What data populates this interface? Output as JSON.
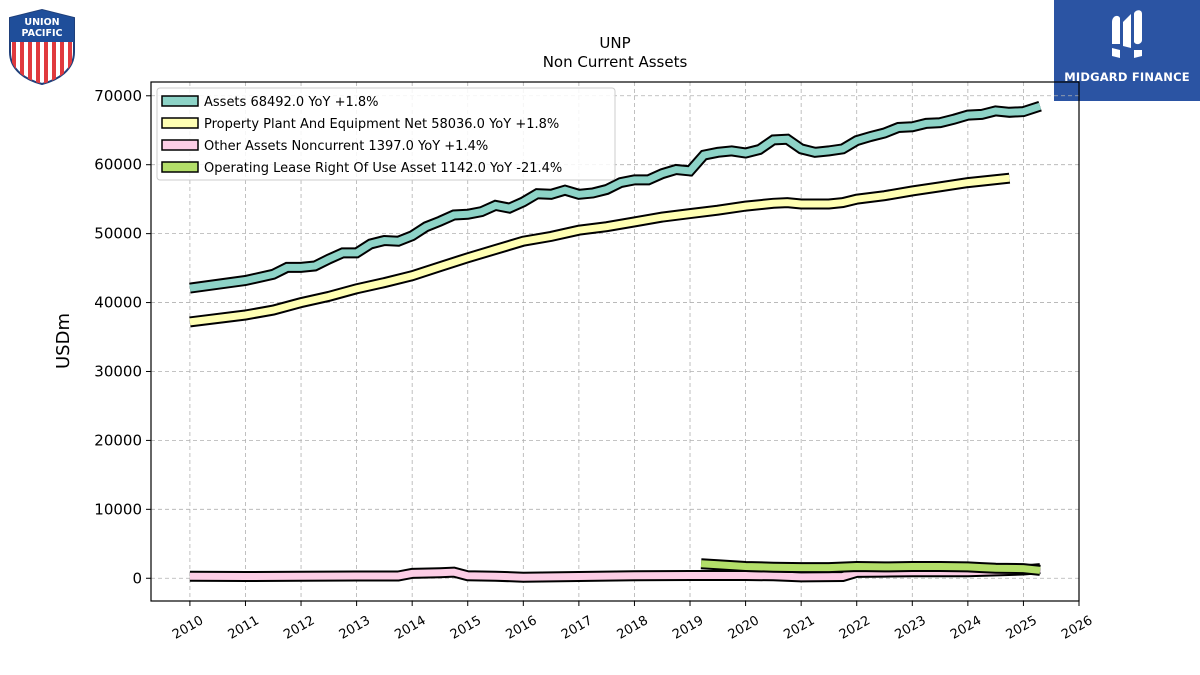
{
  "logos": {
    "left_text_line1": "UNION",
    "left_text_line2": "PACIFIC",
    "right_text": "MIDGARD FINANCE"
  },
  "colors": {
    "assets": "#8dd3c7",
    "ppe": "#ffffb3",
    "other": "#fccde5",
    "lease": "#b3de69",
    "grid": "#b0b0b0",
    "brand_blue": "#2b54a3"
  },
  "chart_data": {
    "type": "line",
    "title": "UNP",
    "subtitle": "Non Current  Assets",
    "xlabel": "",
    "ylabel": "USDm",
    "xlim": [
      2009.3,
      2026
    ],
    "ylim": [
      -3300,
      72000
    ],
    "x_ticks": [
      "2010",
      "2011",
      "2012",
      "2013",
      "2014",
      "2015",
      "2016",
      "2017",
      "2018",
      "2019",
      "2020",
      "2021",
      "2022",
      "2023",
      "2024",
      "2025",
      "2026"
    ],
    "y_ticks": [
      "0",
      "10000",
      "20000",
      "30000",
      "40000",
      "50000",
      "60000",
      "70000"
    ],
    "grid": true,
    "legend_position": "top-left",
    "series": [
      {
        "name": "Assets  68492.0 YoY +1.8%",
        "key": "assets",
        "points": [
          [
            2010.0,
            42100
          ],
          [
            2011.0,
            43200
          ],
          [
            2011.5,
            44100
          ],
          [
            2011.75,
            45100
          ],
          [
            2012.0,
            45100
          ],
          [
            2012.25,
            45300
          ],
          [
            2012.5,
            46300
          ],
          [
            2012.75,
            47200
          ],
          [
            2013.0,
            47200
          ],
          [
            2013.25,
            48500
          ],
          [
            2013.5,
            49000
          ],
          [
            2013.75,
            48900
          ],
          [
            2014.0,
            49700
          ],
          [
            2014.25,
            51000
          ],
          [
            2014.5,
            51800
          ],
          [
            2014.75,
            52700
          ],
          [
            2015.0,
            52800
          ],
          [
            2015.25,
            53200
          ],
          [
            2015.5,
            54100
          ],
          [
            2015.75,
            53700
          ],
          [
            2016.0,
            54600
          ],
          [
            2016.25,
            55800
          ],
          [
            2016.5,
            55700
          ],
          [
            2016.75,
            56300
          ],
          [
            2017.0,
            55700
          ],
          [
            2017.25,
            55900
          ],
          [
            2017.5,
            56400
          ],
          [
            2017.75,
            57400
          ],
          [
            2018.0,
            57800
          ],
          [
            2018.25,
            57800
          ],
          [
            2018.5,
            58700
          ],
          [
            2018.75,
            59300
          ],
          [
            2019.0,
            59100
          ],
          [
            2019.25,
            61400
          ],
          [
            2019.5,
            61800
          ],
          [
            2019.75,
            62000
          ],
          [
            2020.0,
            61700
          ],
          [
            2020.25,
            62200
          ],
          [
            2020.5,
            63600
          ],
          [
            2020.75,
            63700
          ],
          [
            2021.0,
            62300
          ],
          [
            2021.25,
            61800
          ],
          [
            2021.5,
            62000
          ],
          [
            2021.75,
            62300
          ],
          [
            2022.0,
            63500
          ],
          [
            2022.25,
            64100
          ],
          [
            2022.5,
            64600
          ],
          [
            2022.75,
            65400
          ],
          [
            2023.0,
            65500
          ],
          [
            2023.25,
            66000
          ],
          [
            2023.5,
            66100
          ],
          [
            2023.75,
            66600
          ],
          [
            2024.0,
            67200
          ],
          [
            2024.25,
            67300
          ],
          [
            2024.5,
            67800
          ],
          [
            2024.75,
            67600
          ],
          [
            2025.0,
            67700
          ],
          [
            2025.3,
            68492
          ]
        ]
      },
      {
        "name": "Property Plant And Equipment Net  58036.0 YoY +1.8%",
        "key": "ppe",
        "points": [
          [
            2010.0,
            37200
          ],
          [
            2011.0,
            38200
          ],
          [
            2011.5,
            38900
          ],
          [
            2012.0,
            40000
          ],
          [
            2012.5,
            40900
          ],
          [
            2013.0,
            42000
          ],
          [
            2013.5,
            42900
          ],
          [
            2014.0,
            43900
          ],
          [
            2014.5,
            45200
          ],
          [
            2015.0,
            46500
          ],
          [
            2015.5,
            47700
          ],
          [
            2016.0,
            48900
          ],
          [
            2016.5,
            49600
          ],
          [
            2017.0,
            50500
          ],
          [
            2017.5,
            51000
          ],
          [
            2018.0,
            51700
          ],
          [
            2018.5,
            52400
          ],
          [
            2019.0,
            52900
          ],
          [
            2019.5,
            53400
          ],
          [
            2020.0,
            54000
          ],
          [
            2020.5,
            54400
          ],
          [
            2020.75,
            54500
          ],
          [
            2021.0,
            54300
          ],
          [
            2021.5,
            54300
          ],
          [
            2021.75,
            54500
          ],
          [
            2022.0,
            55000
          ],
          [
            2022.5,
            55500
          ],
          [
            2023.0,
            56200
          ],
          [
            2023.5,
            56800
          ],
          [
            2024.0,
            57400
          ],
          [
            2024.75,
            58036
          ]
        ]
      },
      {
        "name": "Other Assets Noncurrent  1397.0 YoY +1.4%",
        "key": "other",
        "points": [
          [
            2010.0,
            300
          ],
          [
            2011.0,
            250
          ],
          [
            2012.0,
            280
          ],
          [
            2013.0,
            320
          ],
          [
            2013.75,
            330
          ],
          [
            2014.0,
            700
          ],
          [
            2014.5,
            800
          ],
          [
            2014.75,
            900
          ],
          [
            2015.0,
            350
          ],
          [
            2015.5,
            300
          ],
          [
            2016.0,
            150
          ],
          [
            2016.5,
            200
          ],
          [
            2017.0,
            250
          ],
          [
            2018.0,
            350
          ],
          [
            2019.0,
            400
          ],
          [
            2020.0,
            400
          ],
          [
            2020.5,
            350
          ],
          [
            2021.0,
            200
          ],
          [
            2021.75,
            250
          ],
          [
            2022.0,
            850
          ],
          [
            2022.5,
            900
          ],
          [
            2023.0,
            950
          ],
          [
            2023.5,
            950
          ],
          [
            2024.0,
            950
          ],
          [
            2025.0,
            1200
          ],
          [
            2025.3,
            1397
          ]
        ]
      },
      {
        "name": "Operating Lease Right Of Use Asset  1142.0 YoY -21.4%",
        "key": "lease",
        "points": [
          [
            2019.2,
            2100
          ],
          [
            2019.5,
            1950
          ],
          [
            2020.0,
            1700
          ],
          [
            2020.5,
            1600
          ],
          [
            2021.0,
            1550
          ],
          [
            2021.5,
            1550
          ],
          [
            2022.0,
            1700
          ],
          [
            2022.5,
            1650
          ],
          [
            2023.0,
            1700
          ],
          [
            2023.5,
            1700
          ],
          [
            2024.0,
            1650
          ],
          [
            2024.25,
            1550
          ],
          [
            2024.5,
            1450
          ],
          [
            2025.0,
            1400
          ],
          [
            2025.3,
            1142
          ]
        ]
      }
    ]
  }
}
